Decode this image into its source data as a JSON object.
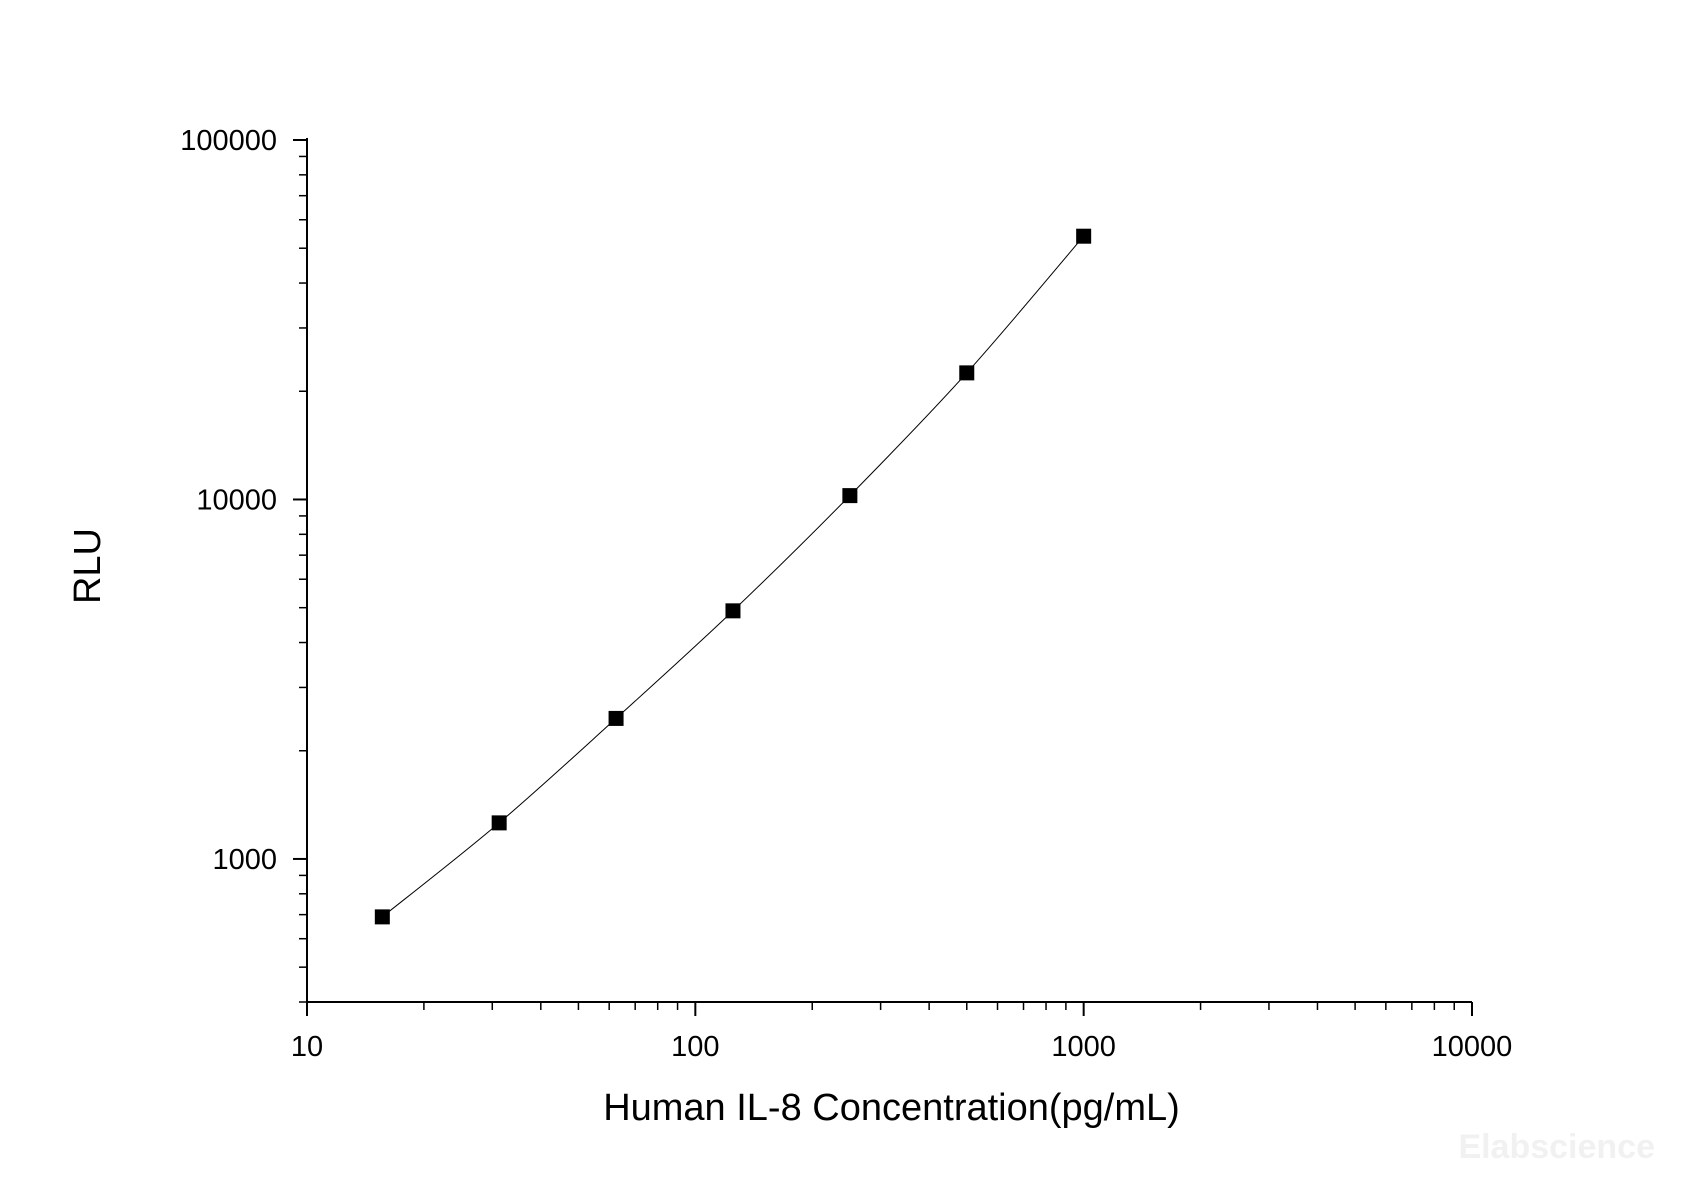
{
  "chart_data": {
    "type": "scatter",
    "title": "",
    "xlabel": "Human IL-8 Concentration(pg/mL)",
    "ylabel": "RLU",
    "x_scale": "log",
    "y_scale": "log",
    "xlim": [
      10,
      10000
    ],
    "ylim": [
      400,
      100000
    ],
    "x_ticks": [
      {
        "value": 10,
        "label": "10"
      },
      {
        "value": 100,
        "label": "100"
      },
      {
        "value": 1000,
        "label": "1000"
      },
      {
        "value": 10000,
        "label": "10000"
      }
    ],
    "y_ticks": [
      {
        "value": 1000,
        "label": "1000"
      },
      {
        "value": 10000,
        "label": "10000"
      },
      {
        "value": 100000,
        "label": "100000"
      }
    ],
    "grid": false,
    "series": [
      {
        "marker": "square",
        "color": "#000000",
        "line": "fitted curve",
        "points": [
          {
            "x": 15.63,
            "y": 690
          },
          {
            "x": 31.25,
            "y": 1260
          },
          {
            "x": 62.5,
            "y": 2460
          },
          {
            "x": 125,
            "y": 4900
          },
          {
            "x": 250,
            "y": 10250
          },
          {
            "x": 500,
            "y": 22500
          },
          {
            "x": 1000,
            "y": 54000
          }
        ]
      }
    ],
    "watermark": "Elabscience"
  }
}
